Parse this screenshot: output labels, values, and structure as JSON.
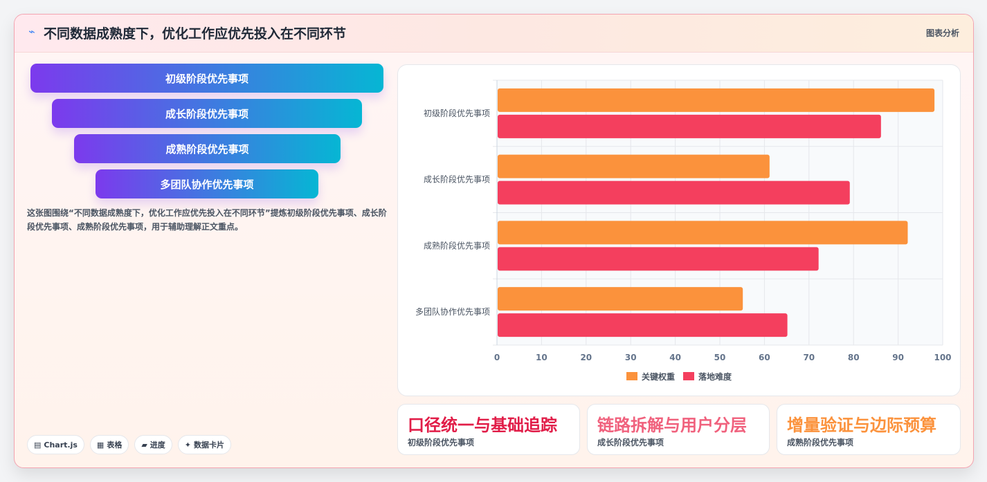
{
  "header": {
    "icon": "spark-icon",
    "title": "不同数据成熟度下，优化工作应优先投入在不同环节",
    "tag": "图表分析"
  },
  "funnel": [
    {
      "label": "初级阶段优先事项"
    },
    {
      "label": "成长阶段优先事项"
    },
    {
      "label": "成熟阶段优先事项"
    },
    {
      "label": "多团队协作优先事项"
    }
  ],
  "description": "这张图围绕“不同数据成熟度下，优化工作应优先投入在不同环节”提炼初级阶段优先事项、成长阶段优先事项、成熟阶段优先事项，用于辅助理解正文重点。",
  "chips": [
    {
      "icon": "chart-icon",
      "label": "Chart.js"
    },
    {
      "icon": "table-icon",
      "label": "表格"
    },
    {
      "icon": "progress-icon",
      "label": "进度"
    },
    {
      "icon": "card-icon",
      "label": "数据卡片"
    }
  ],
  "chart_data": {
    "type": "bar",
    "orientation": "horizontal",
    "categories": [
      "初级阶段优先事项",
      "成长阶段优先事项",
      "成熟阶段优先事项",
      "多团队协作优先事项"
    ],
    "series": [
      {
        "name": "关键权重",
        "color": "#fb923c",
        "values": [
          98,
          61,
          92,
          55
        ]
      },
      {
        "name": "落地难度",
        "color": "#f43f5e",
        "values": [
          86,
          79,
          72,
          65
        ]
      }
    ],
    "xlim": [
      0,
      100
    ],
    "xticks": [
      "0",
      "10",
      "20",
      "30",
      "40",
      "50",
      "60",
      "70",
      "80",
      "90",
      "100"
    ],
    "grid": true,
    "legend": "bottom"
  },
  "metrics": [
    {
      "title": "口径统一与基础追踪",
      "sub": "初级阶段优先事项",
      "color": "#e11d48"
    },
    {
      "title": "链路拆解与用户分层",
      "sub": "成长阶段优先事项",
      "color": "#f0617d"
    },
    {
      "title": "增量验证与边际预算",
      "sub": "成熟阶段优先事项",
      "color": "#fb923c"
    }
  ]
}
